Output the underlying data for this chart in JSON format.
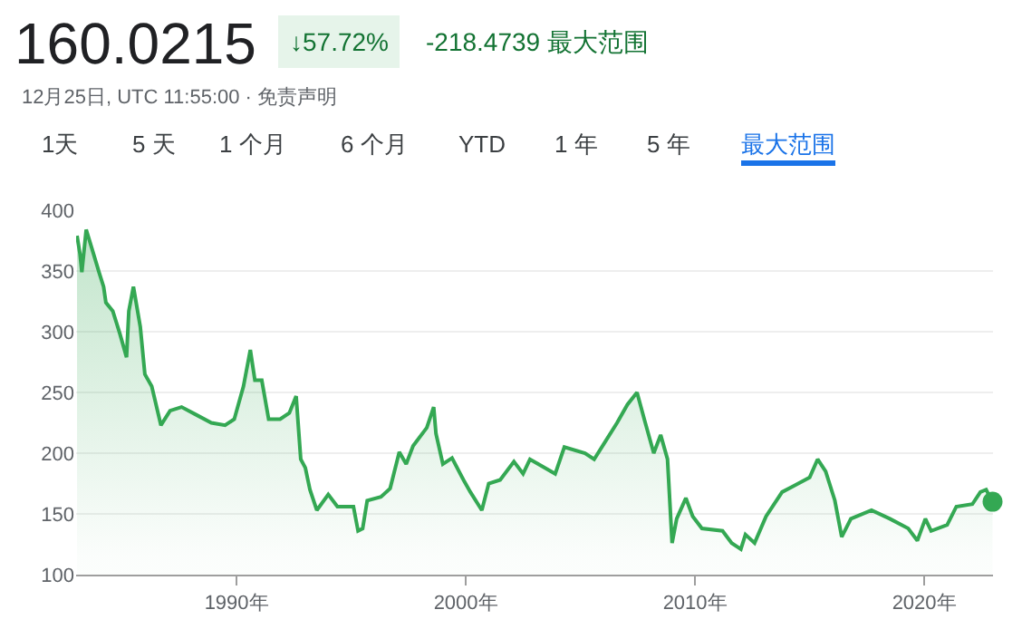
{
  "chart_data": {
    "type": "area",
    "title": "160.0215",
    "subtitle": "12月25日, UTC 11:55:00 · 免责声明",
    "annotations": [
      "↓57.72%",
      "-218.4739 最大范围",
      "1天",
      "5 天",
      "1 个月",
      "6 个月",
      "YTD",
      "1 年",
      "5 年",
      "最大范围"
    ],
    "xlim": [
      1983.0,
      2023.0
    ],
    "xticks": [
      {
        "value": 1990,
        "label": "1990年"
      },
      {
        "value": 2000,
        "label": "2000年"
      },
      {
        "value": 2010,
        "label": "2010年"
      },
      {
        "value": 2020,
        "label": "2020年"
      }
    ],
    "ylim": [
      100,
      400
    ],
    "yticks": [
      100,
      150,
      200,
      250,
      300,
      350,
      400
    ],
    "grid": "y",
    "series": [
      {
        "color": "#34a853",
        "x": [
          1983.04,
          1983.17,
          1983.25,
          1983.44,
          1983.65,
          1983.84,
          1984.0,
          1984.2,
          1984.3,
          1984.6,
          1984.9,
          1985.2,
          1985.3,
          1985.5,
          1985.8,
          1986.0,
          1986.3,
          1986.7,
          1987.1,
          1987.6,
          1988.2,
          1988.9,
          1989.5,
          1989.9,
          1990.3,
          1990.6,
          1990.8,
          1991.1,
          1991.4,
          1991.9,
          1992.3,
          1992.6,
          1992.8,
          1993.0,
          1993.2,
          1993.5,
          1994.0,
          1994.4,
          1995.1,
          1995.3,
          1995.5,
          1995.7,
          1996.3,
          1996.7,
          1997.1,
          1997.4,
          1997.7,
          1998.3,
          1998.6,
          1998.7,
          1999.0,
          1999.4,
          1999.9,
          2000.2,
          2000.7,
          2001.0,
          2001.5,
          2002.1,
          2002.5,
          2002.8,
          2003.9,
          2004.3,
          2005.2,
          2005.6,
          2006.1,
          2006.6,
          2007.05,
          2007.47,
          2007.8,
          2008.2,
          2008.5,
          2008.8,
          2009.0,
          2009.2,
          2009.6,
          2009.9,
          2010.3,
          2011.2,
          2011.6,
          2012.0,
          2012.2,
          2012.6,
          2013.1,
          2013.8,
          2014.3,
          2015.0,
          2015.35,
          2015.7,
          2016.1,
          2016.4,
          2016.8,
          2017.7,
          2018.5,
          2019.3,
          2019.7,
          2020.05,
          2020.3,
          2021.0,
          2021.4,
          2022.1,
          2022.45,
          2022.7,
          2022.92,
          2022.98
        ],
        "values": [
          379,
          364,
          349,
          384,
          371,
          359,
          349,
          337,
          324,
          317,
          299,
          279,
          317,
          337,
          304,
          265,
          255,
          223,
          235,
          238,
          232,
          225,
          223,
          228,
          255,
          285,
          260,
          260,
          228,
          228,
          233,
          247,
          195,
          188,
          170,
          153,
          166,
          156,
          156,
          136,
          138,
          161,
          164,
          171,
          201,
          191,
          206,
          221,
          238,
          216,
          191,
          196,
          178,
          168,
          153,
          175,
          178,
          193,
          183,
          195,
          183,
          205,
          200,
          195,
          210,
          225,
          240,
          250,
          227,
          200,
          215,
          195,
          126,
          146,
          163,
          148,
          138,
          136,
          126,
          121,
          133,
          126,
          148,
          168,
          173,
          180,
          195,
          185,
          161,
          131,
          146,
          153,
          146,
          138,
          128,
          146,
          136,
          141,
          156,
          158,
          168,
          170,
          162,
          160
        ]
      },
      {
        "type": "scatter",
        "color": "#34a853",
        "x": [
          2022.98
        ],
        "values": [
          160
        ]
      }
    ]
  }
}
